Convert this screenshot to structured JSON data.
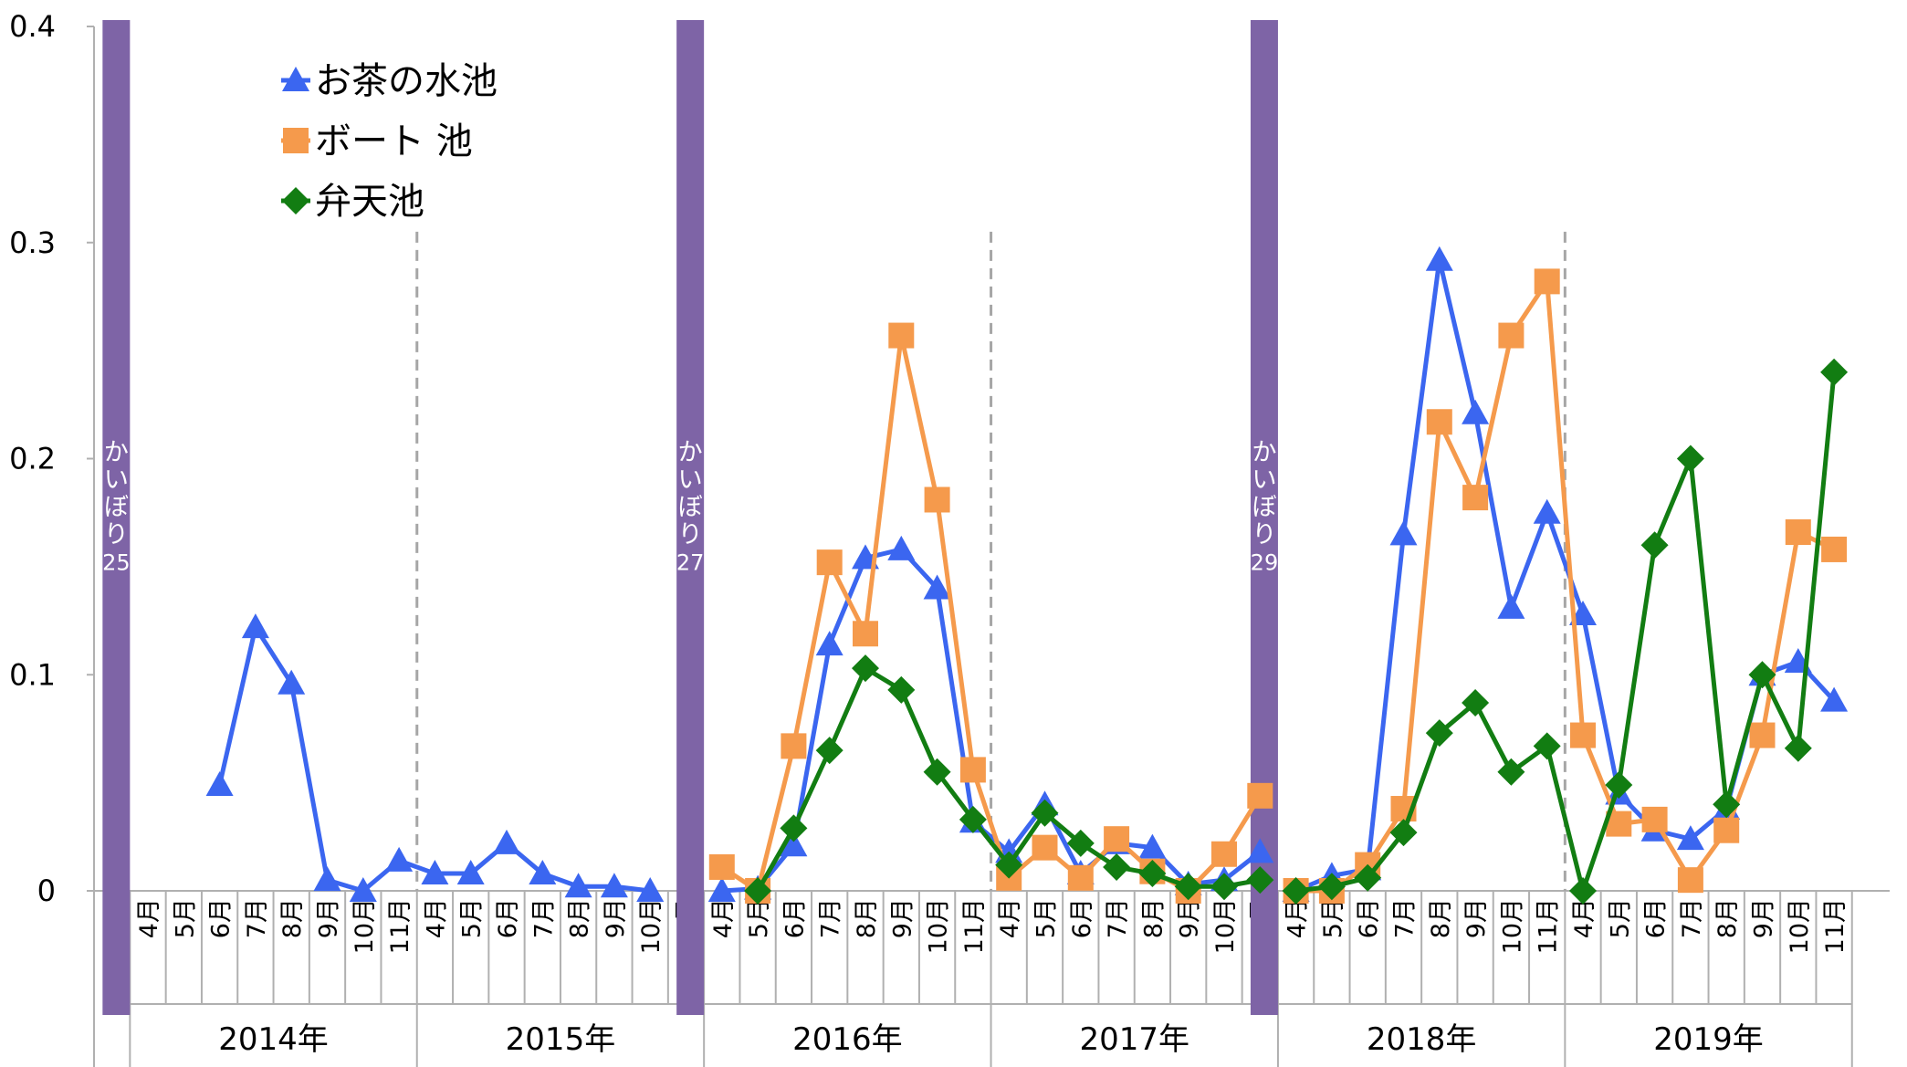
{
  "chart_data": {
    "type": "line",
    "ylim": [
      0,
      0.4
    ],
    "yticks": [
      "0",
      "0.1",
      "0.2",
      "0.3",
      "0.4"
    ],
    "months": [
      "4月",
      "5月",
      "6月",
      "7月",
      "8月",
      "9月",
      "10月",
      "11月"
    ],
    "years": [
      "2014年",
      "2015年",
      "2016年",
      "2017年",
      "2018年",
      "2019年"
    ],
    "legend_position": "top-left",
    "events": [
      {
        "label": "かいぼり",
        "number": "25",
        "position": 0
      },
      {
        "label": "かいぼり",
        "number": "27",
        "position": 16
      },
      {
        "label": "かいぼり",
        "number": "29",
        "position": 32
      }
    ],
    "series": [
      {
        "name": "お茶の水池",
        "color": "#3b66f0",
        "marker": "triangle",
        "segments": [
          [
            [
              2,
              0.049
            ],
            [
              3,
              0.122
            ],
            [
              4,
              0.096
            ],
            [
              5,
              0.005
            ],
            [
              6,
              0.0
            ],
            [
              7,
              0.014
            ],
            [
              8,
              0.008
            ],
            [
              9,
              0.008
            ],
            [
              10,
              0.022
            ],
            [
              11,
              0.008
            ],
            [
              12,
              0.002
            ],
            [
              13,
              0.002
            ],
            [
              14,
              0.0
            ]
          ],
          [
            [
              16,
              0.0
            ],
            [
              17,
              0.001
            ],
            [
              18,
              0.021
            ],
            [
              19,
              0.114
            ],
            [
              20,
              0.154
            ],
            [
              21,
              0.158
            ],
            [
              22,
              0.14
            ],
            [
              23,
              0.032
            ],
            [
              24,
              0.018
            ],
            [
              25,
              0.04
            ],
            [
              26,
              0.008
            ],
            [
              27,
              0.022
            ],
            [
              28,
              0.02
            ],
            [
              29,
              0.003
            ],
            [
              30,
              0.005
            ],
            [
              31,
              0.018
            ]
          ],
          [
            [
              32,
              0.0
            ],
            [
              33,
              0.007
            ],
            [
              34,
              0.01
            ],
            [
              35,
              0.165
            ],
            [
              36,
              0.292
            ],
            [
              37,
              0.221
            ],
            [
              38,
              0.131
            ],
            [
              39,
              0.175
            ],
            [
              40,
              0.128
            ],
            [
              41,
              0.045
            ],
            [
              42,
              0.028
            ],
            [
              43,
              0.024
            ],
            [
              44,
              0.038
            ],
            [
              45,
              0.1
            ],
            [
              46,
              0.106
            ],
            [
              47,
              0.088
            ]
          ]
        ]
      },
      {
        "name": "ボート 池",
        "color": "#f59a4c",
        "marker": "square",
        "segments": [
          [
            [
              16,
              0.011
            ],
            [
              17,
              0.0
            ],
            [
              18,
              0.067
            ],
            [
              19,
              0.152
            ],
            [
              20,
              0.119
            ],
            [
              21,
              0.257
            ],
            [
              22,
              0.181
            ],
            [
              23,
              0.056
            ],
            [
              24,
              0.006
            ],
            [
              25,
              0.02
            ],
            [
              26,
              0.006
            ],
            [
              27,
              0.024
            ],
            [
              28,
              0.009
            ],
            [
              29,
              0.0
            ],
            [
              30,
              0.017
            ],
            [
              31,
              0.044
            ]
          ],
          [
            [
              32,
              0.0
            ],
            [
              33,
              0.0
            ],
            [
              34,
              0.012
            ],
            [
              35,
              0.038
            ],
            [
              36,
              0.217
            ],
            [
              37,
              0.182
            ],
            [
              38,
              0.257
            ],
            [
              39,
              0.282
            ],
            [
              40,
              0.072
            ],
            [
              41,
              0.031
            ],
            [
              42,
              0.033
            ],
            [
              43,
              0.005
            ],
            [
              44,
              0.028
            ],
            [
              45,
              0.072
            ],
            [
              46,
              0.166
            ],
            [
              47,
              0.158
            ]
          ]
        ]
      },
      {
        "name": "弁天池",
        "color": "#127d12",
        "marker": "diamond",
        "segments": [
          [
            [
              17,
              0.0
            ],
            [
              18,
              0.029
            ],
            [
              19,
              0.065
            ],
            [
              20,
              0.103
            ],
            [
              21,
              0.093
            ],
            [
              22,
              0.055
            ],
            [
              23,
              0.033
            ],
            [
              24,
              0.012
            ],
            [
              25,
              0.036
            ],
            [
              26,
              0.022
            ],
            [
              27,
              0.011
            ],
            [
              28,
              0.008
            ],
            [
              29,
              0.002
            ],
            [
              30,
              0.002
            ],
            [
              31,
              0.005
            ]
          ],
          [
            [
              32,
              0.0
            ],
            [
              33,
              0.002
            ],
            [
              34,
              0.006
            ],
            [
              35,
              0.027
            ],
            [
              36,
              0.073
            ],
            [
              37,
              0.087
            ],
            [
              38,
              0.055
            ],
            [
              39,
              0.067
            ],
            [
              40,
              0.0
            ],
            [
              41,
              0.049
            ],
            [
              42,
              0.16
            ],
            [
              43,
              0.2
            ],
            [
              44,
              0.04
            ],
            [
              45,
              0.1
            ],
            [
              46,
              0.066
            ],
            [
              47,
              0.24
            ]
          ]
        ]
      }
    ]
  }
}
